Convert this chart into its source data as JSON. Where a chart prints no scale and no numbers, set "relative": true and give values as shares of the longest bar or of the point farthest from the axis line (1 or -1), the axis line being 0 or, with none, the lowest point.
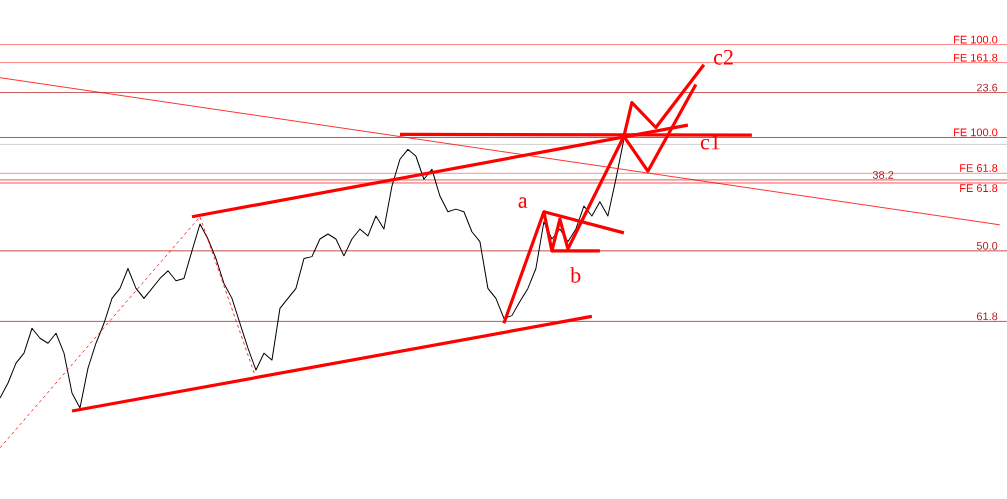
{
  "chart_data": {
    "type": "line",
    "relative": true,
    "categories": [
      null,
      null,
      null,
      null,
      null,
      null,
      null,
      null,
      null,
      null,
      null,
      null,
      null,
      null,
      null,
      null,
      null,
      null,
      null,
      null,
      null,
      null,
      null,
      null,
      null,
      null,
      null,
      null,
      null,
      null,
      null,
      null,
      null,
      null,
      null,
      null,
      null,
      null,
      null,
      null,
      null,
      null,
      null,
      null,
      null,
      null,
      null,
      null,
      null,
      null,
      null,
      null,
      null,
      null,
      null,
      null,
      null,
      null,
      null,
      null,
      null,
      null,
      null,
      null,
      null,
      null,
      null,
      null,
      null,
      null,
      null,
      null,
      null,
      null,
      null,
      null,
      null,
      null,
      null,
      null,
      null,
      null,
      null,
      null,
      null,
      null,
      null,
      null,
      null,
      null,
      null,
      null,
      null,
      null,
      null,
      null,
      null,
      null,
      null,
      null,
      null,
      null,
      null,
      null,
      null,
      null,
      null,
      null,
      null,
      null,
      null,
      null,
      null,
      null,
      null,
      null,
      null,
      null,
      null,
      null,
      null,
      null,
      null,
      null,
      null,
      null
    ],
    "series": [
      {
        "color": "#000000",
        "values": [
          0.13,
          0.169,
          0.221,
          0.247,
          0.312,
          0.286,
          0.273,
          0.299,
          0.247,
          0.143,
          0.104,
          0.208,
          0.273,
          0.325,
          0.39,
          0.416,
          0.468,
          0.416,
          0.39,
          0.416,
          0.442,
          0.462,
          0.436,
          0.442,
          0.514,
          0.584,
          0.545,
          0.494,
          0.429,
          0.39,
          0.325,
          0.26,
          0.203,
          0.247,
          0.229,
          0.364,
          0.39,
          0.416,
          0.494,
          0.499,
          0.545,
          0.558,
          0.545,
          0.501,
          0.545,
          0.571,
          0.553,
          0.605,
          0.571,
          0.683,
          0.753,
          0.779,
          0.761,
          0.701,
          0.727,
          0.657,
          0.616,
          0.623,
          0.616,
          0.564,
          0.538,
          0.416,
          0.39,
          0.338,
          0.345,
          0.382,
          0.416,
          0.468,
          0.59,
          0.545,
          0.571,
          0.538,
          0.571,
          0.631,
          0.605,
          0.642,
          0.605,
          0.701,
          0.805,
          null,
          null,
          null,
          null,
          null,
          null,
          null,
          null,
          null,
          null,
          null,
          null,
          null,
          null,
          null,
          null,
          null,
          null,
          null,
          null,
          null,
          null,
          null,
          null,
          null,
          null,
          null,
          null,
          null,
          null,
          null,
          null,
          null,
          null,
          null,
          null,
          null,
          null,
          null,
          null,
          null,
          null,
          null,
          null,
          null,
          null,
          null
        ]
      },
      {
        "color": "#ff0000",
        "line_style": "solid",
        "values": [
          0.966,
          null,
          null,
          null,
          null,
          null,
          null,
          null,
          null,
          null,
          null,
          null,
          null,
          null,
          null,
          null,
          null,
          null,
          null,
          null,
          null,
          null,
          null,
          null,
          null,
          null,
          null,
          null,
          null,
          null,
          null,
          null,
          null,
          null,
          null,
          null,
          null,
          null,
          null,
          null,
          null,
          null,
          null,
          null,
          null,
          null,
          null,
          null,
          null,
          null,
          null,
          null,
          null,
          null,
          null,
          null,
          null,
          null,
          null,
          null,
          null,
          null,
          null,
          null,
          null,
          null,
          null,
          null,
          null,
          null,
          null,
          null,
          null,
          null,
          null,
          null,
          null,
          null,
          null,
          null,
          null,
          null,
          null,
          null,
          null,
          null,
          null,
          null,
          null,
          null,
          null,
          null,
          null,
          null,
          null,
          null,
          null,
          null,
          null,
          null,
          null,
          null,
          null,
          null,
          null,
          null,
          null,
          null,
          null,
          null,
          null,
          null,
          null,
          null,
          null,
          null,
          null,
          null,
          null,
          null,
          null,
          null,
          null,
          null,
          null,
          0.582
        ]
      },
      {
        "color": "#ff0000",
        "line_style": "dashed",
        "values": [
          0,
          null,
          null,
          null,
          null,
          null,
          null,
          null,
          null,
          null,
          null,
          null,
          null,
          null,
          null,
          null,
          null,
          null,
          null,
          null,
          null,
          null,
          null,
          null,
          null,
          0.603,
          null,
          null,
          null,
          null,
          null,
          null,
          0.182,
          null,
          null,
          null,
          null,
          null,
          null,
          null,
          null,
          null,
          null,
          null,
          null,
          null,
          null,
          null,
          null,
          null,
          null,
          null,
          null,
          null,
          null,
          null,
          null,
          null,
          null,
          null,
          null,
          null,
          null,
          null,
          null,
          null,
          null,
          null,
          null,
          null,
          null,
          null,
          null,
          null,
          null,
          null,
          null,
          null,
          null,
          null,
          null,
          null,
          null,
          null,
          null,
          null,
          null,
          null,
          null,
          null,
          null,
          null,
          null,
          null,
          null,
          null,
          null,
          null,
          null,
          null,
          null,
          null,
          null,
          null,
          null,
          null,
          null,
          null,
          null,
          null,
          null,
          null,
          null,
          null,
          null,
          null,
          null,
          null,
          null,
          null,
          null,
          null,
          null,
          null,
          null,
          null
        ]
      },
      {
        "color": "#ff0000",
        "values": [
          null,
          null,
          null,
          null,
          null,
          null,
          null,
          null,
          null,
          0.096,
          null,
          null,
          null,
          null,
          null,
          null,
          null,
          null,
          null,
          null,
          null,
          null,
          null,
          null,
          null,
          null,
          null,
          null,
          null,
          null,
          null,
          null,
          null,
          null,
          null,
          null,
          null,
          null,
          null,
          null,
          null,
          null,
          null,
          null,
          null,
          null,
          null,
          null,
          null,
          null,
          null,
          null,
          null,
          null,
          null,
          null,
          null,
          null,
          null,
          null,
          null,
          null,
          null,
          null,
          null,
          null,
          null,
          null,
          null,
          null,
          null,
          null,
          null,
          null,
          0.343,
          null,
          null,
          null,
          null,
          null,
          null,
          null,
          null,
          null,
          null,
          null,
          null,
          null,
          null,
          null,
          null,
          null,
          null,
          null,
          null,
          null,
          null,
          null,
          null,
          null,
          null,
          null,
          null,
          null,
          null,
          null,
          null,
          null,
          null,
          null,
          null,
          null,
          null,
          null,
          null,
          null,
          null,
          null,
          null,
          null,
          null,
          null,
          null,
          null,
          null,
          null
        ]
      },
      {
        "color": "#ff0000",
        "values": [
          null,
          null,
          null,
          null,
          null,
          null,
          null,
          null,
          null,
          null,
          null,
          null,
          null,
          null,
          null,
          null,
          null,
          null,
          null,
          null,
          null,
          null,
          null,
          null,
          0.603,
          null,
          null,
          null,
          null,
          null,
          null,
          null,
          null,
          null,
          null,
          null,
          null,
          null,
          null,
          null,
          null,
          null,
          null,
          null,
          null,
          null,
          null,
          null,
          null,
          null,
          null,
          null,
          null,
          null,
          null,
          null,
          null,
          null,
          null,
          null,
          null,
          null,
          null,
          null,
          null,
          null,
          null,
          null,
          null,
          null,
          null,
          null,
          null,
          null,
          null,
          null,
          null,
          null,
          null,
          null,
          null,
          null,
          null,
          null,
          null,
          null,
          0.842,
          null,
          null,
          null,
          null,
          null,
          null,
          null,
          null,
          null,
          null,
          null,
          null,
          null,
          null,
          null,
          null,
          null,
          null,
          null,
          null,
          null,
          null,
          null,
          null,
          null,
          null,
          null,
          null,
          null,
          null,
          null,
          null,
          null,
          null,
          null,
          null,
          null,
          null,
          null
        ]
      },
      {
        "color": "#ff0000",
        "values": [
          null,
          null,
          null,
          null,
          null,
          null,
          null,
          null,
          null,
          null,
          null,
          null,
          null,
          null,
          null,
          null,
          null,
          null,
          null,
          null,
          null,
          null,
          null,
          null,
          null,
          null,
          null,
          null,
          null,
          null,
          null,
          null,
          null,
          null,
          null,
          null,
          null,
          null,
          null,
          null,
          null,
          null,
          null,
          null,
          null,
          null,
          null,
          null,
          null,
          null,
          0.818,
          null,
          null,
          null,
          null,
          null,
          null,
          null,
          null,
          null,
          null,
          null,
          null,
          null,
          null,
          null,
          null,
          null,
          null,
          null,
          null,
          null,
          null,
          null,
          null,
          null,
          null,
          null,
          null,
          null,
          null,
          null,
          null,
          null,
          null,
          null,
          null,
          null,
          null,
          null,
          null,
          null,
          null,
          null,
          0.816,
          null,
          null,
          null,
          null,
          null,
          null,
          null,
          null,
          null,
          null,
          null,
          null,
          null,
          null,
          null,
          null,
          null,
          null,
          null,
          null,
          null,
          null,
          null,
          null,
          null,
          null,
          null,
          null,
          null,
          null,
          null
        ]
      },
      {
        "color": "#ff0000",
        "values": [
          null,
          null,
          null,
          null,
          null,
          null,
          null,
          null,
          null,
          null,
          null,
          null,
          null,
          null,
          null,
          null,
          null,
          null,
          null,
          null,
          null,
          null,
          null,
          null,
          null,
          null,
          null,
          null,
          null,
          null,
          null,
          null,
          null,
          null,
          null,
          null,
          null,
          null,
          null,
          null,
          null,
          null,
          null,
          null,
          null,
          null,
          null,
          null,
          null,
          null,
          null,
          null,
          null,
          null,
          null,
          null,
          null,
          null,
          null,
          null,
          null,
          null,
          null,
          0.325,
          null,
          null,
          null,
          null,
          0.616,
          0.514,
          0.597,
          0.519,
          null,
          null,
          null,
          null,
          null,
          null,
          0.813,
          0.901,
          null,
          null,
          0.836,
          null,
          null,
          null,
          null,
          null,
          1.0,
          null,
          null,
          null,
          null,
          null,
          null,
          null,
          null,
          null,
          null,
          null,
          null,
          null,
          null,
          null,
          null,
          null,
          null,
          null,
          null,
          null,
          null,
          null,
          null,
          null,
          null,
          null,
          null,
          null,
          null,
          null,
          null,
          null,
          null,
          null,
          null,
          null
        ]
      },
      {
        "color": "#ff0000",
        "values": [
          null,
          null,
          null,
          null,
          null,
          null,
          null,
          null,
          null,
          null,
          null,
          null,
          null,
          null,
          null,
          null,
          null,
          null,
          null,
          null,
          null,
          null,
          null,
          null,
          null,
          null,
          null,
          null,
          null,
          null,
          null,
          null,
          null,
          null,
          null,
          null,
          null,
          null,
          null,
          null,
          null,
          null,
          null,
          null,
          null,
          null,
          null,
          null,
          null,
          null,
          null,
          null,
          null,
          null,
          null,
          null,
          null,
          null,
          null,
          null,
          null,
          null,
          null,
          null,
          null,
          null,
          null,
          null,
          null,
          null,
          null,
          null,
          null,
          null,
          null,
          null,
          null,
          null,
          0.813,
          null,
          null,
          0.722,
          null,
          null,
          null,
          null,
          null,
          0.948,
          null,
          null,
          null,
          null,
          null,
          null,
          null,
          null,
          null,
          null,
          null,
          null,
          null,
          null,
          null,
          null,
          null,
          null,
          null,
          null,
          null,
          null,
          null,
          null,
          null,
          null,
          null,
          null,
          null,
          null,
          null,
          null,
          null,
          null,
          null,
          null,
          null,
          null
        ]
      },
      {
        "color": "#ff0000",
        "values": [
          null,
          null,
          null,
          null,
          null,
          null,
          null,
          null,
          null,
          null,
          null,
          null,
          null,
          null,
          null,
          null,
          null,
          null,
          null,
          null,
          null,
          null,
          null,
          null,
          null,
          null,
          null,
          null,
          null,
          null,
          null,
          null,
          null,
          null,
          null,
          null,
          null,
          null,
          null,
          null,
          null,
          null,
          null,
          null,
          null,
          null,
          null,
          null,
          null,
          null,
          null,
          null,
          null,
          null,
          null,
          null,
          null,
          null,
          null,
          null,
          null,
          null,
          null,
          null,
          null,
          null,
          null,
          null,
          0.616,
          null,
          null,
          null,
          null,
          null,
          null,
          null,
          null,
          null,
          0.561,
          null,
          null,
          null,
          null,
          null,
          null,
          null,
          null,
          null,
          null,
          null,
          null,
          null,
          null,
          null,
          null,
          null,
          null,
          null,
          null,
          null,
          null,
          null,
          null,
          null,
          null,
          null,
          null,
          null,
          null,
          null,
          null,
          null,
          null,
          null,
          null,
          null,
          null,
          null,
          null,
          null,
          null,
          null,
          null,
          null,
          null,
          null
        ]
      },
      {
        "color": "#ff0000",
        "values": [
          null,
          null,
          null,
          null,
          null,
          null,
          null,
          null,
          null,
          null,
          null,
          null,
          null,
          null,
          null,
          null,
          null,
          null,
          null,
          null,
          null,
          null,
          null,
          null,
          null,
          null,
          null,
          null,
          null,
          null,
          null,
          null,
          null,
          null,
          null,
          null,
          null,
          null,
          null,
          null,
          null,
          null,
          null,
          null,
          null,
          null,
          null,
          null,
          null,
          null,
          null,
          null,
          null,
          null,
          null,
          null,
          null,
          null,
          null,
          null,
          null,
          null,
          null,
          null,
          null,
          null,
          null,
          null,
          null,
          0.514,
          null,
          null,
          null,
          null,
          null,
          0.514,
          null,
          null,
          null,
          null,
          null,
          null,
          null,
          null,
          null,
          null,
          null,
          null,
          null,
          null,
          null,
          null,
          null,
          null,
          null,
          null,
          null,
          null,
          null,
          null,
          null,
          null,
          null,
          null,
          null,
          null,
          null,
          null,
          null,
          null,
          null,
          null,
          null,
          null,
          null,
          null,
          null,
          null,
          null,
          null,
          null,
          null,
          null,
          null,
          null,
          null
        ]
      }
    ],
    "ref_lines": [
      {
        "axis": "y",
        "value": 1.052,
        "label": "FE 100.0",
        "color": "#ff0000"
      },
      {
        "axis": "y",
        "value": 1.005,
        "label": "FE 161.8",
        "color": "#ff0000"
      },
      {
        "axis": "y",
        "value": 0.927,
        "color": "#b22222"
      },
      {
        "axis": "y",
        "value": 0.81,
        "label": "FE 100.0",
        "color": "#ff0000"
      },
      {
        "axis": "y",
        "value": 0.792,
        "color": "#c0c0c0"
      },
      {
        "axis": "y",
        "value": 0.717,
        "label": "FE 61.8",
        "color": "#ff0000"
      },
      {
        "axis": "y",
        "value": 0.699,
        "color": "#b22222"
      },
      {
        "axis": "y",
        "value": 0.691,
        "label": "FE 61.8",
        "color": "#ff0000"
      },
      {
        "axis": "y",
        "value": 0.514,
        "color": "#b22222"
      },
      {
        "axis": "y",
        "value": 0.33,
        "color": "#b22222"
      }
    ],
    "annotations": [
      {
        "text": "23.6",
        "y": 0.927
      },
      {
        "text": "38.2",
        "y": 0.699
      },
      {
        "text": "50.0",
        "y": 0.514
      },
      {
        "text": "61.8",
        "y": 0.33
      },
      "a",
      "b",
      "c1",
      "c2"
    ]
  }
}
